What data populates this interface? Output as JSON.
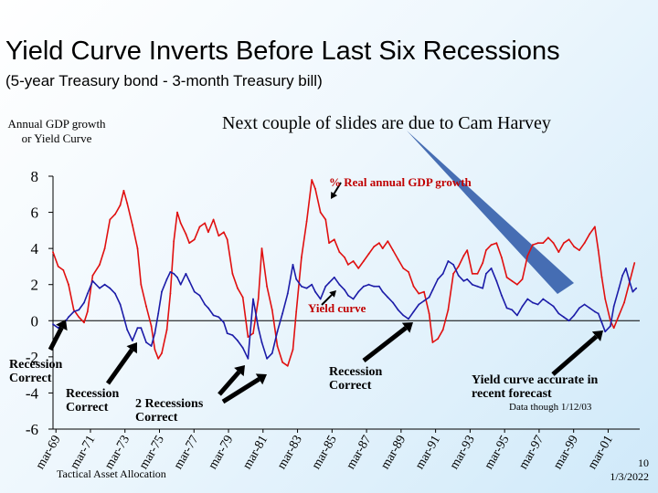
{
  "slide": {
    "title": "Yield Curve Inverts Before Last Six Recessions",
    "subtitle": "(5-year Treasury bond - 3-month Treasury bill)",
    "credit": "Next couple of slides are due to Cam Harvey",
    "footer_text": "Tactical Asset Allocation",
    "slide_number": "10",
    "date": "1/3/2022"
  },
  "chart_data": {
    "type": "line",
    "ylabel": "Annual GDP growth or Yield Curve",
    "ylim": [
      -6,
      8
    ],
    "yticks": [
      "8",
      "6",
      "4",
      "2",
      "0",
      "-2",
      "-4",
      "-6"
    ],
    "ytick_values": [
      8,
      6,
      4,
      2,
      0,
      -2,
      -4,
      -6
    ],
    "x_categories": [
      "mar-69",
      "mar-71",
      "mar-73",
      "mar-75",
      "mar-77",
      "mar-79",
      "mar-81",
      "mar-83",
      "mar-85",
      "mar-87",
      "mar-89",
      "mar-91",
      "mar-93",
      "mar-95",
      "mar-97",
      "mar-99",
      "mar-01"
    ],
    "x_display": [
      "mar-69",
      "mar-71",
      "mar-73",
      "mar-75",
      "mar-77",
      "mar-79",
      "mar-81",
      "mar-83",
      "mar-85",
      "mar-87",
      "mar-89",
      "mar-91",
      "mar-93",
      "mar-95",
      "mar-97",
      "mar-99",
      "mar-01"
    ],
    "xlim": [
      1969.0,
      2003.0
    ],
    "series": [
      {
        "name": "% Real annual GDP growth",
        "color": "#e01010",
        "points": [
          [
            1969.0,
            3.8
          ],
          [
            1969.3,
            3.0
          ],
          [
            1969.6,
            2.8
          ],
          [
            1969.9,
            2.0
          ],
          [
            1970.2,
            0.6
          ],
          [
            1970.5,
            0.2
          ],
          [
            1970.8,
            -0.1
          ],
          [
            1971.0,
            0.5
          ],
          [
            1971.3,
            2.5
          ],
          [
            1971.7,
            3.1
          ],
          [
            1972.0,
            4.0
          ],
          [
            1972.3,
            5.6
          ],
          [
            1972.6,
            5.9
          ],
          [
            1972.9,
            6.4
          ],
          [
            1973.1,
            7.2
          ],
          [
            1973.3,
            6.5
          ],
          [
            1973.6,
            5.3
          ],
          [
            1973.9,
            4.0
          ],
          [
            1974.1,
            2.0
          ],
          [
            1974.4,
            0.8
          ],
          [
            1974.7,
            -0.3
          ],
          [
            1974.9,
            -1.6
          ],
          [
            1975.1,
            -2.1
          ],
          [
            1975.3,
            -1.8
          ],
          [
            1975.6,
            -0.5
          ],
          [
            1975.8,
            1.5
          ],
          [
            1976.0,
            4.4
          ],
          [
            1976.2,
            6.0
          ],
          [
            1976.4,
            5.4
          ],
          [
            1976.7,
            4.8
          ],
          [
            1976.9,
            4.3
          ],
          [
            1977.2,
            4.5
          ],
          [
            1977.5,
            5.2
          ],
          [
            1977.8,
            5.4
          ],
          [
            1978.0,
            4.9
          ],
          [
            1978.3,
            5.6
          ],
          [
            1978.6,
            4.7
          ],
          [
            1978.9,
            4.9
          ],
          [
            1979.1,
            4.5
          ],
          [
            1979.4,
            2.6
          ],
          [
            1979.7,
            1.8
          ],
          [
            1980.0,
            1.3
          ],
          [
            1980.3,
            -0.9
          ],
          [
            1980.6,
            -0.7
          ],
          [
            1980.9,
            1.2
          ],
          [
            1981.1,
            4.0
          ],
          [
            1981.4,
            1.9
          ],
          [
            1981.7,
            0.6
          ],
          [
            1982.0,
            -1.4
          ],
          [
            1982.3,
            -2.3
          ],
          [
            1982.6,
            -2.5
          ],
          [
            1982.9,
            -1.6
          ],
          [
            1983.1,
            0.5
          ],
          [
            1983.4,
            3.5
          ],
          [
            1983.7,
            5.5
          ],
          [
            1984.0,
            7.8
          ],
          [
            1984.2,
            7.3
          ],
          [
            1984.5,
            6.0
          ],
          [
            1984.8,
            5.6
          ],
          [
            1985.0,
            4.3
          ],
          [
            1985.3,
            4.5
          ],
          [
            1985.6,
            3.8
          ],
          [
            1985.9,
            3.5
          ],
          [
            1986.1,
            3.1
          ],
          [
            1986.4,
            3.3
          ],
          [
            1986.7,
            2.9
          ],
          [
            1987.0,
            3.3
          ],
          [
            1987.3,
            3.7
          ],
          [
            1987.6,
            4.1
          ],
          [
            1987.9,
            4.3
          ],
          [
            1988.1,
            4.0
          ],
          [
            1988.4,
            4.4
          ],
          [
            1988.7,
            3.9
          ],
          [
            1989.0,
            3.4
          ],
          [
            1989.3,
            2.9
          ],
          [
            1989.6,
            2.7
          ],
          [
            1989.9,
            1.9
          ],
          [
            1990.2,
            1.5
          ],
          [
            1990.5,
            1.6
          ],
          [
            1990.8,
            0.4
          ],
          [
            1991.0,
            -1.2
          ],
          [
            1991.3,
            -1.0
          ],
          [
            1991.6,
            -0.5
          ],
          [
            1991.9,
            0.6
          ],
          [
            1992.2,
            2.6
          ],
          [
            1992.5,
            3.0
          ],
          [
            1992.8,
            3.6
          ],
          [
            1993.0,
            3.9
          ],
          [
            1993.3,
            2.6
          ],
          [
            1993.6,
            2.6
          ],
          [
            1993.9,
            3.2
          ],
          [
            1994.1,
            3.9
          ],
          [
            1994.4,
            4.2
          ],
          [
            1994.7,
            4.3
          ],
          [
            1995.0,
            3.5
          ],
          [
            1995.3,
            2.4
          ],
          [
            1995.6,
            2.2
          ],
          [
            1995.9,
            2.0
          ],
          [
            1996.2,
            2.3
          ],
          [
            1996.5,
            3.6
          ],
          [
            1996.8,
            4.2
          ],
          [
            1997.1,
            4.3
          ],
          [
            1997.4,
            4.3
          ],
          [
            1997.7,
            4.6
          ],
          [
            1998.0,
            4.3
          ],
          [
            1998.3,
            3.8
          ],
          [
            1998.6,
            4.3
          ],
          [
            1998.9,
            4.5
          ],
          [
            1999.2,
            4.1
          ],
          [
            1999.5,
            3.9
          ],
          [
            1999.8,
            4.3
          ],
          [
            2000.1,
            4.8
          ],
          [
            2000.4,
            5.2
          ],
          [
            2000.6,
            3.9
          ],
          [
            2000.8,
            2.4
          ],
          [
            2001.0,
            1.2
          ],
          [
            2001.3,
            0.0
          ],
          [
            2001.5,
            -0.4
          ],
          [
            2001.8,
            0.3
          ],
          [
            2002.1,
            1.0
          ],
          [
            2002.4,
            2.1
          ],
          [
            2002.7,
            3.2
          ]
        ]
      },
      {
        "name": "Yield curve",
        "color": "#1c1ca8",
        "points": [
          [
            1969.0,
            -0.2
          ],
          [
            1969.3,
            -0.4
          ],
          [
            1969.6,
            -0.2
          ],
          [
            1969.9,
            0.2
          ],
          [
            1970.2,
            0.5
          ],
          [
            1970.5,
            0.6
          ],
          [
            1970.8,
            1.0
          ],
          [
            1971.0,
            1.5
          ],
          [
            1971.3,
            2.2
          ],
          [
            1971.7,
            1.8
          ],
          [
            1972.0,
            2.0
          ],
          [
            1972.3,
            1.8
          ],
          [
            1972.6,
            1.5
          ],
          [
            1972.9,
            0.9
          ],
          [
            1973.1,
            0.2
          ],
          [
            1973.3,
            -0.5
          ],
          [
            1973.6,
            -1.1
          ],
          [
            1973.9,
            -0.4
          ],
          [
            1974.1,
            -0.4
          ],
          [
            1974.4,
            -1.2
          ],
          [
            1974.7,
            -1.4
          ],
          [
            1974.9,
            -0.7
          ],
          [
            1975.1,
            0.4
          ],
          [
            1975.3,
            1.6
          ],
          [
            1975.6,
            2.3
          ],
          [
            1975.8,
            2.7
          ],
          [
            1976.0,
            2.6
          ],
          [
            1976.2,
            2.4
          ],
          [
            1976.4,
            2.0
          ],
          [
            1976.7,
            2.6
          ],
          [
            1976.9,
            2.2
          ],
          [
            1977.2,
            1.6
          ],
          [
            1977.5,
            1.4
          ],
          [
            1977.8,
            0.9
          ],
          [
            1978.0,
            0.7
          ],
          [
            1978.3,
            0.3
          ],
          [
            1978.6,
            0.2
          ],
          [
            1978.9,
            -0.1
          ],
          [
            1979.1,
            -0.7
          ],
          [
            1979.4,
            -0.8
          ],
          [
            1979.7,
            -1.1
          ],
          [
            1980.0,
            -1.5
          ],
          [
            1980.3,
            -2.1
          ],
          [
            1980.6,
            1.2
          ],
          [
            1980.9,
            -0.4
          ],
          [
            1981.1,
            -1.2
          ],
          [
            1981.4,
            -2.1
          ],
          [
            1981.7,
            -1.8
          ],
          [
            1982.0,
            -0.6
          ],
          [
            1982.3,
            0.4
          ],
          [
            1982.6,
            1.5
          ],
          [
            1982.9,
            3.1
          ],
          [
            1983.1,
            2.3
          ],
          [
            1983.4,
            1.9
          ],
          [
            1983.7,
            1.8
          ],
          [
            1984.0,
            2.0
          ],
          [
            1984.2,
            1.6
          ],
          [
            1984.5,
            1.2
          ],
          [
            1984.8,
            1.9
          ],
          [
            1985.0,
            2.1
          ],
          [
            1985.3,
            2.4
          ],
          [
            1985.6,
            2.0
          ],
          [
            1985.9,
            1.7
          ],
          [
            1986.1,
            1.4
          ],
          [
            1986.4,
            1.2
          ],
          [
            1986.7,
            1.6
          ],
          [
            1987.0,
            1.9
          ],
          [
            1987.3,
            2.0
          ],
          [
            1987.6,
            1.9
          ],
          [
            1987.9,
            1.9
          ],
          [
            1988.1,
            1.6
          ],
          [
            1988.4,
            1.3
          ],
          [
            1988.7,
            1.0
          ],
          [
            1989.0,
            0.6
          ],
          [
            1989.3,
            0.3
          ],
          [
            1989.6,
            0.1
          ],
          [
            1989.9,
            0.5
          ],
          [
            1990.2,
            0.9
          ],
          [
            1990.5,
            1.1
          ],
          [
            1990.8,
            1.3
          ],
          [
            1991.0,
            1.7
          ],
          [
            1991.3,
            2.3
          ],
          [
            1991.6,
            2.6
          ],
          [
            1991.9,
            3.3
          ],
          [
            1992.2,
            3.1
          ],
          [
            1992.5,
            2.5
          ],
          [
            1992.8,
            2.2
          ],
          [
            1993.0,
            2.3
          ],
          [
            1993.3,
            2.0
          ],
          [
            1993.6,
            1.9
          ],
          [
            1993.9,
            1.8
          ],
          [
            1994.1,
            2.6
          ],
          [
            1994.4,
            2.9
          ],
          [
            1994.7,
            2.2
          ],
          [
            1995.0,
            1.4
          ],
          [
            1995.3,
            0.7
          ],
          [
            1995.6,
            0.6
          ],
          [
            1995.9,
            0.3
          ],
          [
            1996.2,
            0.8
          ],
          [
            1996.5,
            1.2
          ],
          [
            1996.8,
            1.0
          ],
          [
            1997.1,
            0.9
          ],
          [
            1997.4,
            1.2
          ],
          [
            1997.7,
            1.0
          ],
          [
            1998.0,
            0.8
          ],
          [
            1998.3,
            0.4
          ],
          [
            1998.6,
            0.2
          ],
          [
            1998.9,
            0.0
          ],
          [
            1999.2,
            0.3
          ],
          [
            1999.5,
            0.7
          ],
          [
            1999.8,
            0.9
          ],
          [
            2000.1,
            0.7
          ],
          [
            2000.4,
            0.5
          ],
          [
            2000.6,
            0.4
          ],
          [
            2000.8,
            -0.1
          ],
          [
            2001.0,
            -0.6
          ],
          [
            2001.3,
            -0.3
          ],
          [
            2001.5,
            0.8
          ],
          [
            2001.8,
            1.8
          ],
          [
            2002.0,
            2.5
          ],
          [
            2002.2,
            2.9
          ],
          [
            2002.4,
            2.2
          ],
          [
            2002.6,
            1.6
          ],
          [
            2002.8,
            1.8
          ]
        ]
      }
    ],
    "annotations": {
      "gdp_label": "% Real annual GDP growth",
      "yc_label": "Yield curve",
      "recession_1": "Recession Correct",
      "recession_2": "Recession Correct",
      "recession_3": "2 Recessions Correct",
      "recession_4": "Recession Correct",
      "forecast": "Yield curve accurate in recent forecast",
      "data_note": "Data though 1/12/03"
    }
  }
}
